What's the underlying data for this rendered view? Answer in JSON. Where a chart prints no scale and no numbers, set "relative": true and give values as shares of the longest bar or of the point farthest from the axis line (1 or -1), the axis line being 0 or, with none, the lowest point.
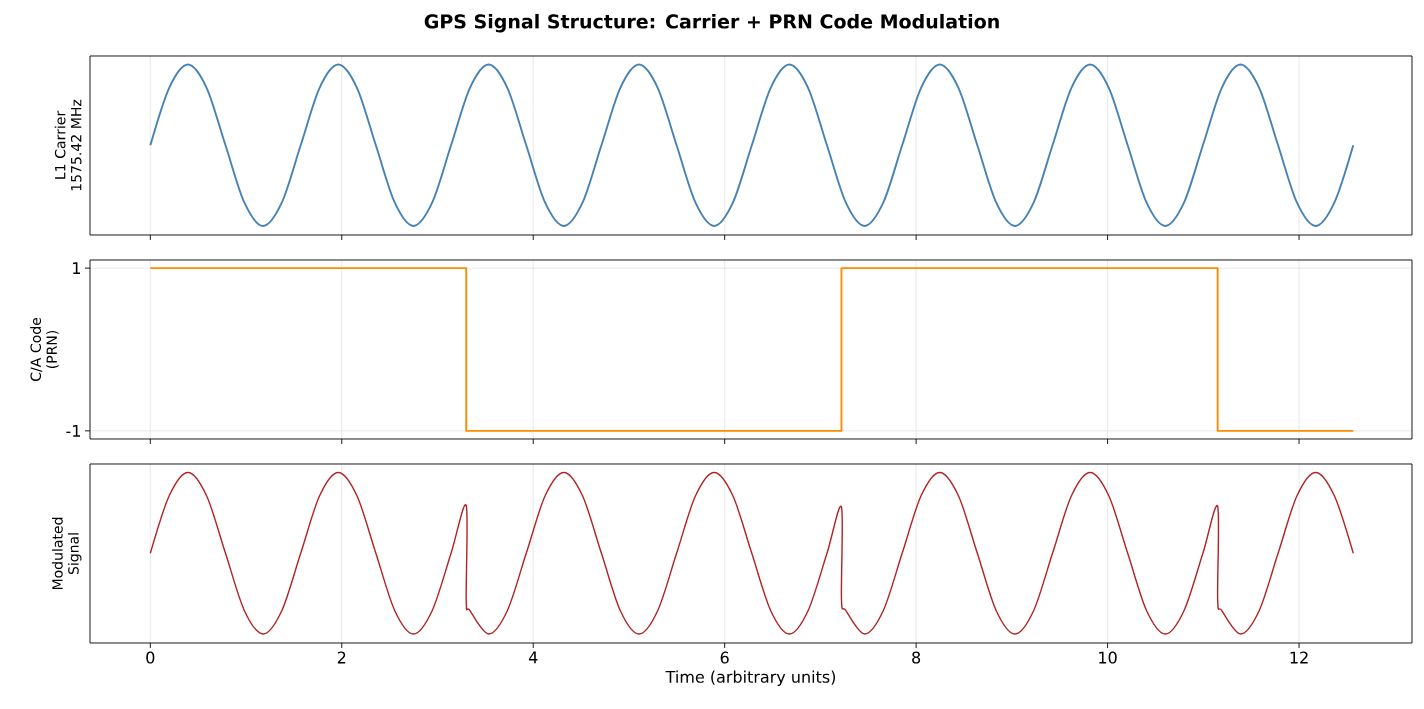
{
  "chart_data": [
    {
      "type": "line",
      "title": "GPS Signal Structure: Carrier + PRN Code Modulation",
      "ylabel": "L1 Carrier 1575.42 MHz",
      "relative": true,
      "grid": "x",
      "tick_labels": false,
      "xlim": [
        -0.63,
        13.18
      ],
      "xticks": [
        0,
        2,
        4,
        6,
        8,
        10,
        12
      ],
      "x": [
        0,
        0.1963,
        0.3927,
        0.589,
        0.7854,
        0.9817,
        1.1781,
        1.3744,
        1.5708,
        1.7671,
        1.9635,
        2.1598,
        2.3562,
        2.5525,
        2.7489,
        2.9452,
        3.1416,
        3.3379,
        3.5343,
        3.7306,
        3.927,
        4.1233,
        4.3197,
        4.516,
        4.7124,
        4.9087,
        5.1051,
        5.3014,
        5.4978,
        5.6941,
        5.8905,
        6.0868,
        6.2832,
        6.4795,
        6.6759,
        6.8722,
        7.0686,
        7.2649,
        7.4613,
        7.6576,
        7.854,
        8.0503,
        8.2467,
        8.443,
        8.6394,
        8.8357,
        9.0321,
        9.2284,
        9.4248,
        9.6211,
        9.8175,
        10.0138,
        10.2102,
        10.4065,
        10.6029,
        10.7992,
        10.9956,
        11.1919,
        11.3883,
        11.5846,
        11.781,
        11.9773,
        12.1737,
        12.37,
        12.5664
      ],
      "series": [
        {
          "color": "#4682b4",
          "values": [
            0.526,
            0.862,
            1,
            0.862,
            0.526,
            0.191,
            0.053,
            0.191,
            0.526,
            0.862,
            1,
            0.862,
            0.526,
            0.191,
            0.053,
            0.191,
            0.526,
            0.862,
            1,
            0.862,
            0.526,
            0.191,
            0.053,
            0.191,
            0.526,
            0.862,
            1,
            0.862,
            0.526,
            0.191,
            0.053,
            0.191,
            0.526,
            0.862,
            1,
            0.862,
            0.526,
            0.191,
            0.053,
            0.191,
            0.526,
            0.862,
            1,
            0.862,
            0.526,
            0.191,
            0.053,
            0.191,
            0.526,
            0.862,
            1,
            0.862,
            0.526,
            0.191,
            0.053,
            0.191,
            0.526,
            0.862,
            1,
            0.862,
            0.526,
            0.191,
            0.053,
            0.191,
            0.526
          ]
        }
      ]
    },
    {
      "type": "step",
      "ylabel": "C/A Code (PRN)",
      "grid": true,
      "tick_labels": "y",
      "xlim": [
        -0.63,
        13.18
      ],
      "xticks": [
        0,
        2,
        4,
        6,
        8,
        10,
        12
      ],
      "ylim": [
        -1.1,
        1.1
      ],
      "yticks": [
        -1,
        1
      ],
      "x": [
        0,
        3.3,
        7.22,
        11.15,
        12.5664
      ],
      "series": [
        {
          "color": "#ff8c00",
          "values": [
            1,
            -1,
            1,
            -1,
            -1
          ]
        }
      ]
    },
    {
      "type": "line",
      "ylabel": "Modulated Signal",
      "xlabel": "Time (arbitrary units)",
      "relative": true,
      "grid": "x",
      "tick_labels": "x",
      "xlim": [
        -0.63,
        13.18
      ],
      "xticks": [
        0,
        2,
        4,
        6,
        8,
        10,
        12
      ],
      "x": [
        0,
        0.1963,
        0.3927,
        0.589,
        0.7854,
        0.9817,
        1.1781,
        1.3744,
        1.5708,
        1.7671,
        1.9635,
        2.1598,
        2.3562,
        2.5525,
        2.7489,
        2.9452,
        3.1416,
        3.3,
        3.3,
        3.3379,
        3.5343,
        3.7306,
        3.927,
        4.1233,
        4.3197,
        4.516,
        4.7124,
        4.9087,
        5.1051,
        5.3014,
        5.4978,
        5.6941,
        5.8905,
        6.0868,
        6.2832,
        6.4795,
        6.6759,
        6.8722,
        7.0686,
        7.22,
        7.22,
        7.2649,
        7.4613,
        7.6576,
        7.854,
        8.0503,
        8.2467,
        8.443,
        8.6394,
        8.8357,
        9.0321,
        9.2284,
        9.4248,
        9.6211,
        9.8175,
        10.0138,
        10.2102,
        10.4065,
        10.6029,
        10.7992,
        10.9956,
        11.15,
        11.15,
        11.1919,
        11.3883,
        11.5846,
        11.781,
        11.9773,
        12.1737,
        12.37,
        12.5664
      ],
      "series": [
        {
          "color": "#b22222",
          "values": [
            0.526,
            0.862,
            1,
            0.862,
            0.526,
            0.191,
            0.053,
            0.191,
            0.526,
            0.862,
            1,
            0.862,
            0.526,
            0.191,
            0.053,
            0.191,
            0.526,
            0.806,
            0.247,
            0.191,
            0.053,
            0.191,
            0.526,
            0.862,
            1,
            0.862,
            0.526,
            0.191,
            0.053,
            0.191,
            0.526,
            0.862,
            1,
            0.862,
            0.526,
            0.191,
            0.053,
            0.191,
            0.526,
            0.798,
            0.255,
            0.191,
            0.053,
            0.191,
            0.526,
            0.862,
            1,
            0.862,
            0.526,
            0.191,
            0.053,
            0.191,
            0.526,
            0.862,
            1,
            0.862,
            0.526,
            0.191,
            0.053,
            0.191,
            0.526,
            0.801,
            0.252,
            0.191,
            0.053,
            0.191,
            0.526,
            0.862,
            1,
            0.862,
            0.526
          ]
        }
      ]
    }
  ]
}
